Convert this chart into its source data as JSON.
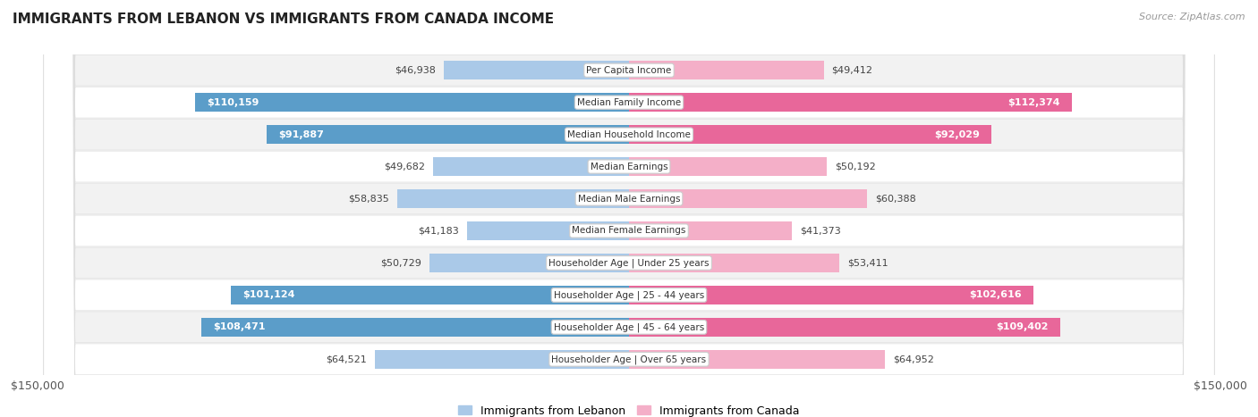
{
  "title": "IMMIGRANTS FROM LEBANON VS IMMIGRANTS FROM CANADA INCOME",
  "source": "Source: ZipAtlas.com",
  "categories": [
    "Per Capita Income",
    "Median Family Income",
    "Median Household Income",
    "Median Earnings",
    "Median Male Earnings",
    "Median Female Earnings",
    "Householder Age | Under 25 years",
    "Householder Age | 25 - 44 years",
    "Householder Age | 45 - 64 years",
    "Householder Age | Over 65 years"
  ],
  "lebanon_values": [
    46938,
    110159,
    91887,
    49682,
    58835,
    41183,
    50729,
    101124,
    108471,
    64521
  ],
  "canada_values": [
    49412,
    112374,
    92029,
    50192,
    60388,
    41373,
    53411,
    102616,
    109402,
    64952
  ],
  "lebanon_labels": [
    "$46,938",
    "$110,159",
    "$91,887",
    "$49,682",
    "$58,835",
    "$41,183",
    "$50,729",
    "$101,124",
    "$108,471",
    "$64,521"
  ],
  "canada_labels": [
    "$49,412",
    "$112,374",
    "$92,029",
    "$50,192",
    "$60,388",
    "$41,373",
    "$53,411",
    "$102,616",
    "$109,402",
    "$64,952"
  ],
  "lebanon_color_light": "#aac9e8",
  "lebanon_color_dark": "#5b9dc9",
  "canada_color_light": "#f4afc8",
  "canada_color_dark": "#e8679a",
  "axis_max": 150000,
  "background_color": "#ffffff",
  "row_colors": [
    "#f2f2f2",
    "#ffffff"
  ],
  "legend_lebanon": "Immigrants from Lebanon",
  "legend_canada": "Immigrants from Canada",
  "label_threshold": 65000,
  "title_fontsize": 11,
  "source_fontsize": 8,
  "bar_label_fontsize": 8,
  "cat_label_fontsize": 7.5,
  "axis_label_fontsize": 9
}
